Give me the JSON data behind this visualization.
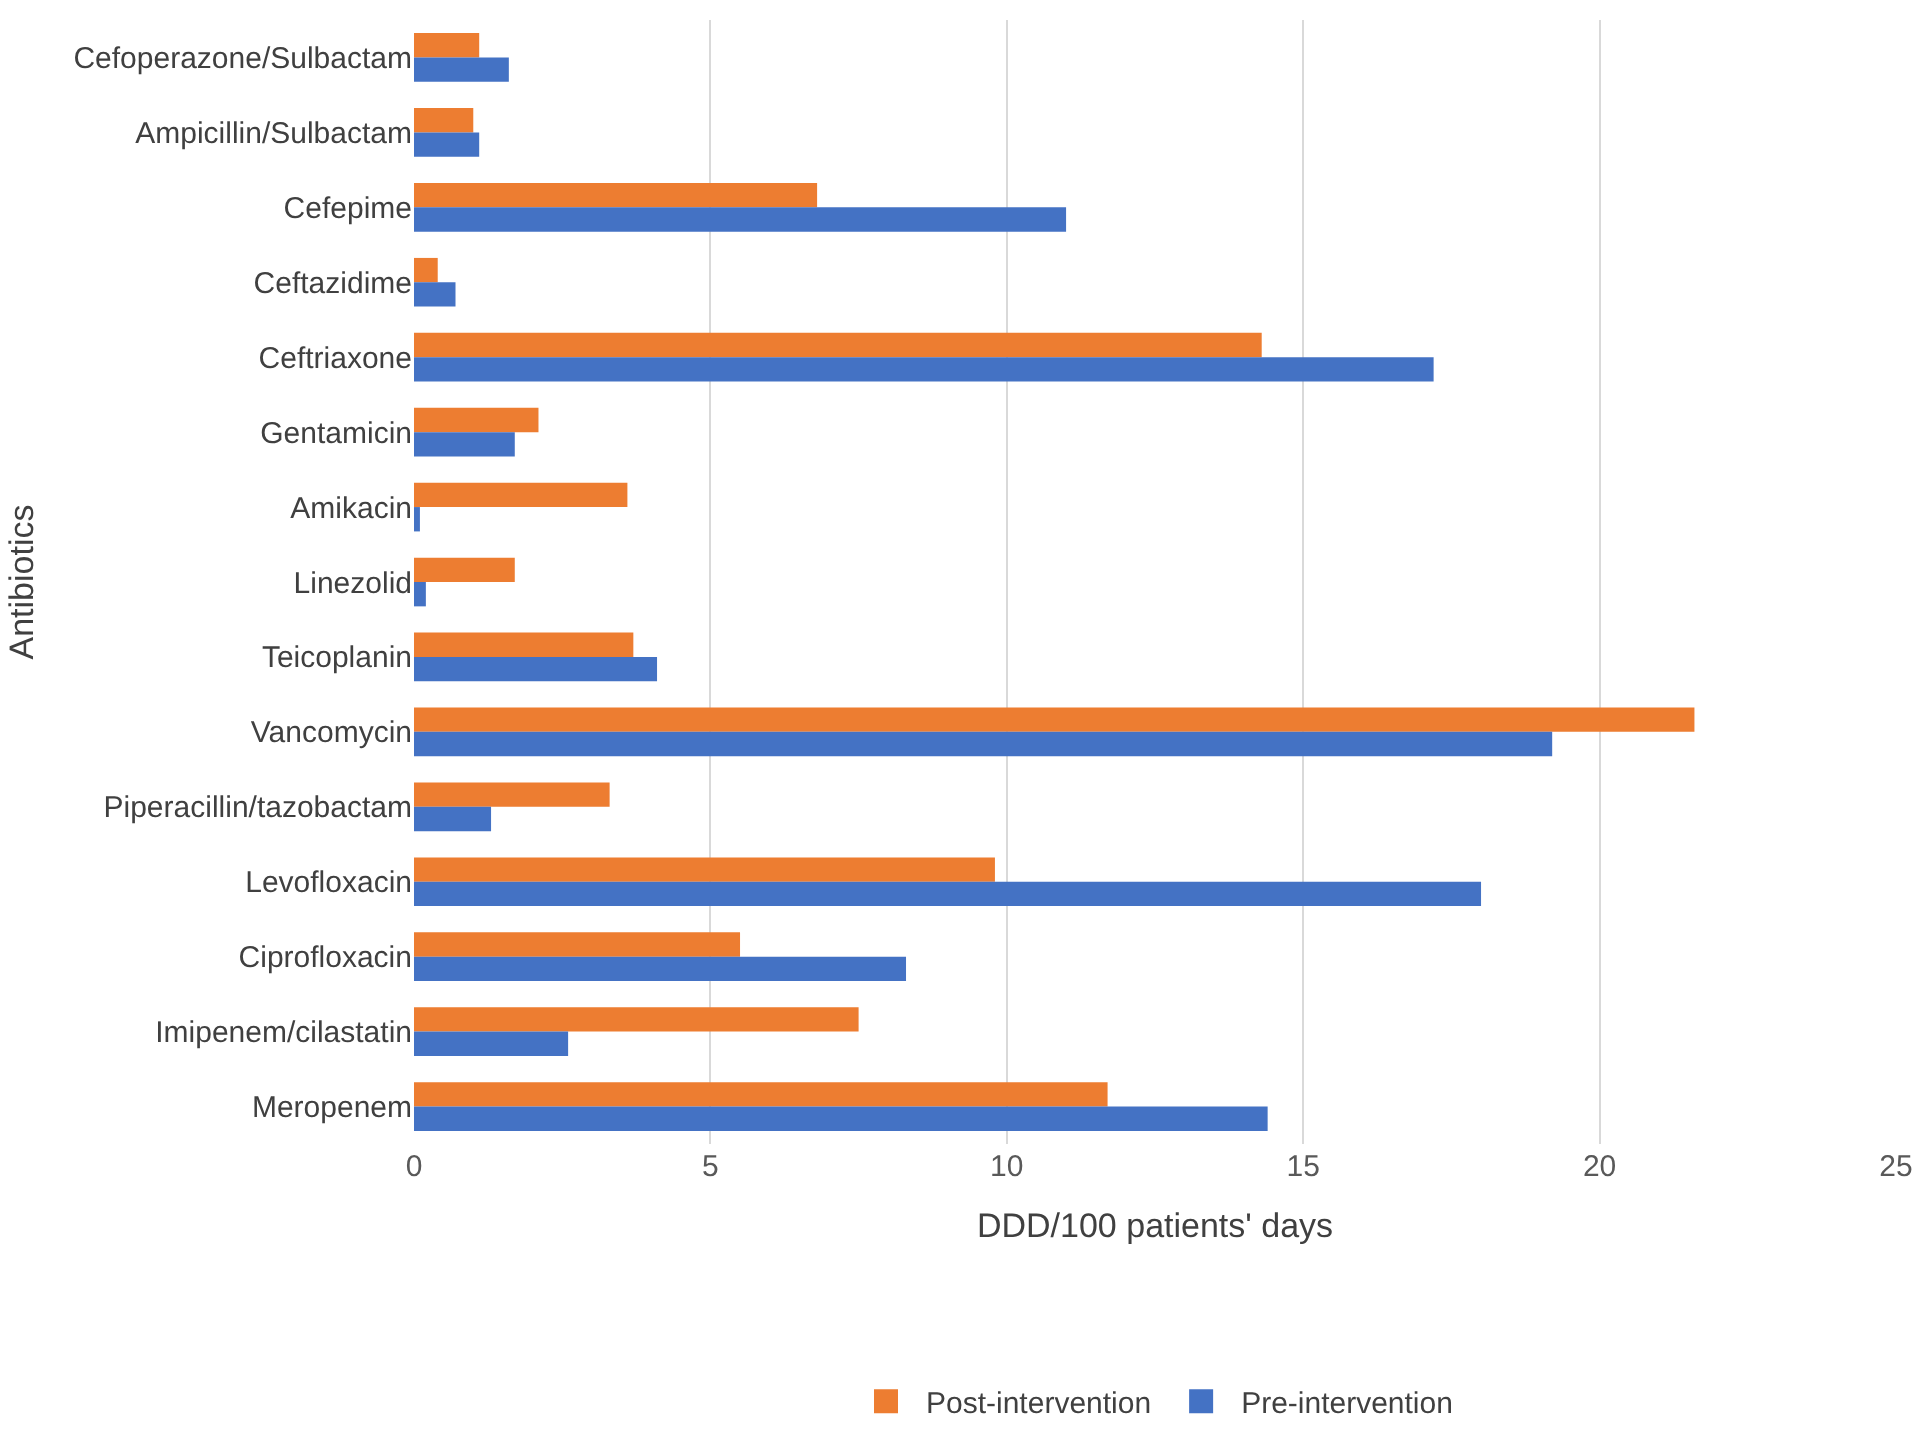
{
  "chart_data": {
    "type": "bar",
    "orientation": "horizontal",
    "xlabel": "DDD/100 patients' days",
    "ylabel": "Antibiotics",
    "categories": [
      "Cefoperazone/Sulbactam",
      "Ampicillin/Sulbactam",
      "Cefepime",
      "Ceftazidime",
      "Ceftriaxone",
      "Gentamicin",
      "Amikacin",
      "Linezolid",
      "Teicoplanin",
      "Vancomycin",
      "Piperacillin/tazobactam",
      "Levofloxacin",
      "Ciprofloxacin",
      "Imipenem/cilastatin",
      "Meropenem"
    ],
    "series": [
      {
        "name": "Post-intervention",
        "color": "#ed7d31",
        "values": [
          1.1,
          1.0,
          6.8,
          0.4,
          14.3,
          2.1,
          3.6,
          1.7,
          3.7,
          21.6,
          3.3,
          9.8,
          5.5,
          7.5,
          11.7
        ]
      },
      {
        "name": "Pre-intervention",
        "color": "#4472c4",
        "values": [
          1.6,
          1.1,
          11.0,
          0.7,
          17.2,
          1.7,
          0.1,
          0.2,
          4.1,
          19.2,
          1.3,
          18.0,
          8.3,
          2.6,
          14.4
        ]
      }
    ],
    "xlim": [
      0,
      25
    ],
    "xticks": [
      0,
      5,
      10,
      15,
      20,
      25
    ],
    "grid": "x",
    "legend": "bottom"
  }
}
